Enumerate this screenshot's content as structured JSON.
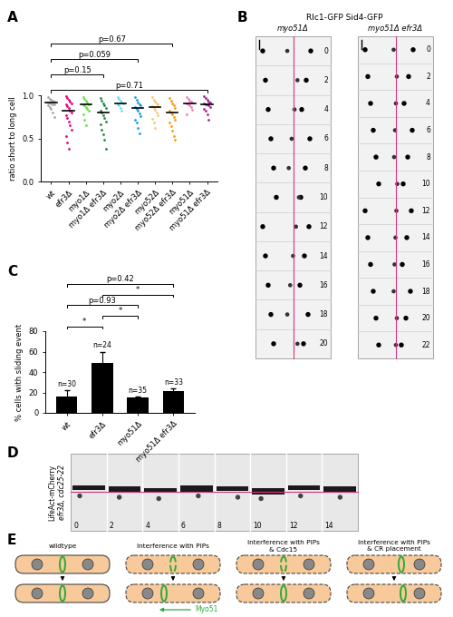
{
  "chart_data": [
    {
      "panel": "A",
      "type": "scatter",
      "y_label": "ratio short to long cell",
      "categories": [
        "wt",
        "efr3Δ",
        "myo1Δ",
        "myo1Δ efr3Δ",
        "myo2Δ",
        "myo2Δ efr3Δ",
        "myo52Δ",
        "myo52Δ efr3Δ",
        "myo51Δ",
        "myo51Δ efr3Δ"
      ],
      "colors": [
        "#a6a6a6",
        "#e6007e",
        "#66e04a",
        "#1f8a3a",
        "#66e0f0",
        "#1a9de0",
        "#f7c77a",
        "#f39c12",
        "#f27fbf",
        "#a0268f"
      ],
      "points": [
        [
          0.98,
          0.96,
          0.95,
          0.94,
          0.93,
          0.92,
          0.92,
          0.91,
          0.9,
          0.89,
          0.88,
          0.86,
          0.84,
          0.8,
          0.75
        ],
        [
          0.99,
          0.97,
          0.95,
          0.93,
          0.91,
          0.89,
          0.87,
          0.85,
          0.82,
          0.8,
          0.77,
          0.74,
          0.7,
          0.65,
          0.6,
          0.53,
          0.45,
          0.38
        ],
        [
          0.98,
          0.96,
          0.94,
          0.92,
          0.9,
          0.89,
          0.88,
          0.86,
          0.84,
          0.82,
          0.78,
          0.72,
          0.65
        ],
        [
          0.97,
          0.94,
          0.91,
          0.88,
          0.85,
          0.82,
          0.8,
          0.77,
          0.74,
          0.7,
          0.66,
          0.6,
          0.55,
          0.48,
          0.38
        ],
        [
          0.98,
          0.96,
          0.94,
          0.92,
          0.91,
          0.9,
          0.88,
          0.85,
          0.82
        ],
        [
          0.98,
          0.95,
          0.92,
          0.9,
          0.88,
          0.86,
          0.84,
          0.82,
          0.79,
          0.76,
          0.72,
          0.68,
          0.62,
          0.56
        ],
        [
          0.98,
          0.95,
          0.93,
          0.91,
          0.89,
          0.87,
          0.85,
          0.83,
          0.8,
          0.77,
          0.73,
          0.68,
          0.62
        ],
        [
          0.97,
          0.94,
          0.91,
          0.88,
          0.85,
          0.82,
          0.8,
          0.78,
          0.75,
          0.72,
          0.68,
          0.64,
          0.59,
          0.53,
          0.48
        ],
        [
          0.98,
          0.96,
          0.94,
          0.93,
          0.92,
          0.91,
          0.9,
          0.88,
          0.86,
          0.83,
          0.78
        ],
        [
          0.99,
          0.97,
          0.95,
          0.93,
          0.92,
          0.91,
          0.9,
          0.89,
          0.88,
          0.86,
          0.84,
          0.82,
          0.78,
          0.72
        ]
      ],
      "means": [
        0.92,
        0.82,
        0.89,
        0.8,
        0.91,
        0.85,
        0.86,
        0.8,
        0.91,
        0.9
      ],
      "ylim": [
        0,
        1.0
      ],
      "yticks": [
        {
          "value": 0,
          "label": "0.0"
        },
        {
          "value": 0.5,
          "label": "0.5"
        },
        {
          "value": 1.0,
          "label": "1.0"
        }
      ],
      "comparisons": [
        {
          "from": "wt",
          "to": "myo51Δ efr3Δ",
          "label": "p=0.71"
        },
        {
          "from": "wt",
          "to": "myo1Δ efr3Δ",
          "label": "p=0.15"
        },
        {
          "from": "wt",
          "to": "myo2Δ efr3Δ",
          "label": "p=0.059"
        },
        {
          "from": "wt",
          "to": "myo52Δ efr3Δ",
          "label": "p=0.67"
        }
      ]
    },
    {
      "panel": "C",
      "type": "bar",
      "y_label": "% cells with sliding event",
      "categories": [
        "wt",
        "efr3Δ",
        "myo51Δ",
        "myo51Δ efr3Δ"
      ],
      "values": [
        16,
        49,
        15,
        21
      ],
      "errors": [
        6,
        11,
        1,
        3
      ],
      "n_labels": [
        "n=30",
        "n=24",
        "n=35",
        "n=33"
      ],
      "color": "#000000",
      "ylim": [
        0,
        80
      ],
      "yticks": [
        0,
        20,
        40,
        60,
        80
      ],
      "comparisons": [
        {
          "from": "wt",
          "to": "efr3Δ",
          "label": "*"
        },
        {
          "from": "efr3Δ",
          "to": "myo51Δ",
          "label": "*"
        },
        {
          "from": "wt",
          "to": "myo51Δ",
          "label": "p=0.93"
        },
        {
          "from": "efr3Δ",
          "to": "myo51Δ efr3Δ",
          "label": "*"
        },
        {
          "from": "wt",
          "to": "myo51Δ efr3Δ",
          "label": "p=0.42"
        }
      ]
    }
  ],
  "kymographs": {
    "panel": "B",
    "title": "Rlc1-GFP Sid4-GFP",
    "columns": [
      {
        "label": "myo51Δ",
        "times": [
          0,
          2,
          4,
          6,
          8,
          10,
          12,
          14,
          16,
          18,
          20
        ]
      },
      {
        "label": "myo51Δ efr3Δ",
        "times": [
          0,
          2,
          4,
          6,
          8,
          10,
          12,
          14,
          16,
          18,
          20,
          22
        ]
      }
    ]
  },
  "time_lapse": {
    "panel": "D",
    "labels": [
      "LifeAct-mCherry",
      "efr3Δ, cdc25-22"
    ],
    "times": [
      0,
      2,
      4,
      6,
      8,
      10,
      12,
      14
    ]
  },
  "model": {
    "panel": "E",
    "titles": [
      "wildtype",
      "Interference with PIPs",
      "Interference with PIPs\n& Cdc15",
      "Interference with PIPs\n& CR placement"
    ],
    "arrow_label": "Myo51"
  }
}
